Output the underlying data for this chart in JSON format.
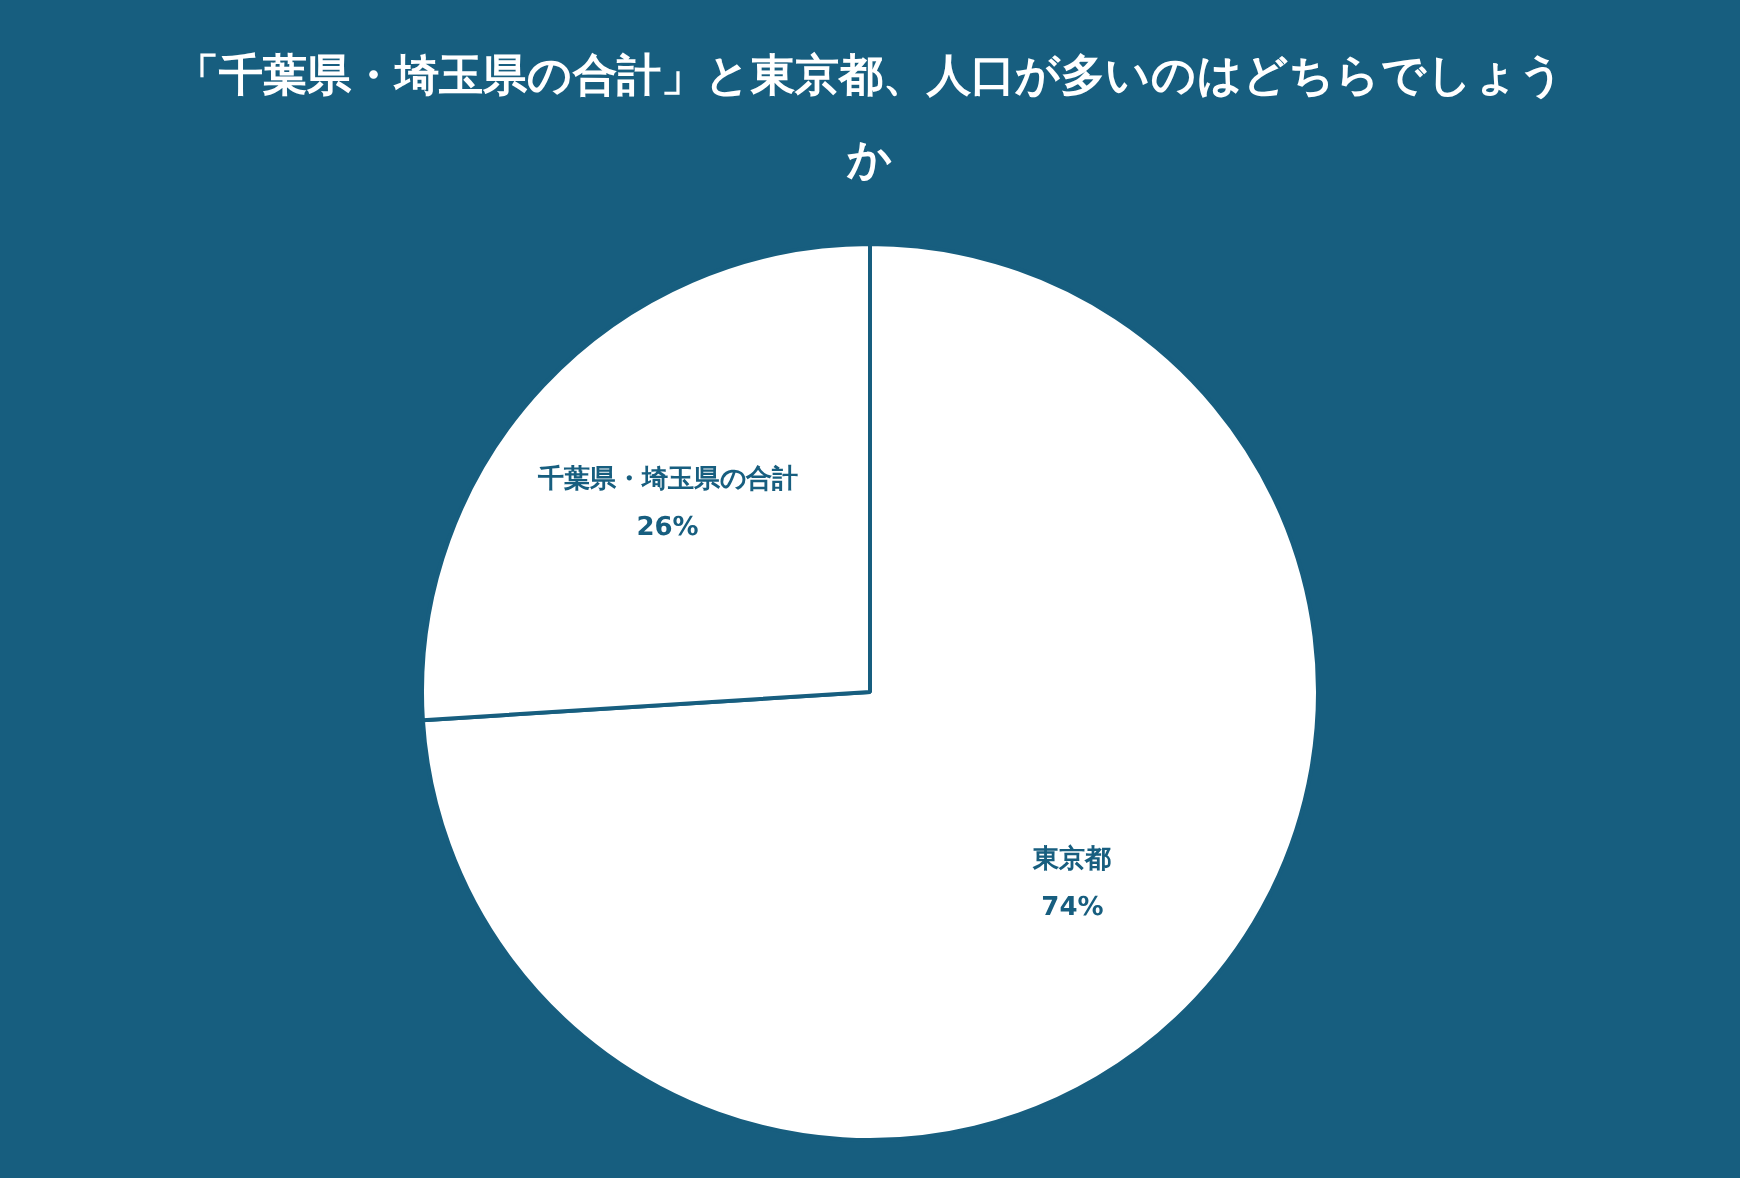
{
  "chart_data": {
    "type": "pie",
    "title": "「千葉県・埼玉県の合計」と東京都、人口が多いのはどちらでしょうか",
    "categories": [
      "東京都",
      "千葉県・埼玉県の合計"
    ],
    "values": [
      74,
      26
    ],
    "colors": [
      "#ffffff",
      "#ffffff"
    ],
    "value_labels": [
      "74%",
      "26%"
    ],
    "legend": false
  }
}
